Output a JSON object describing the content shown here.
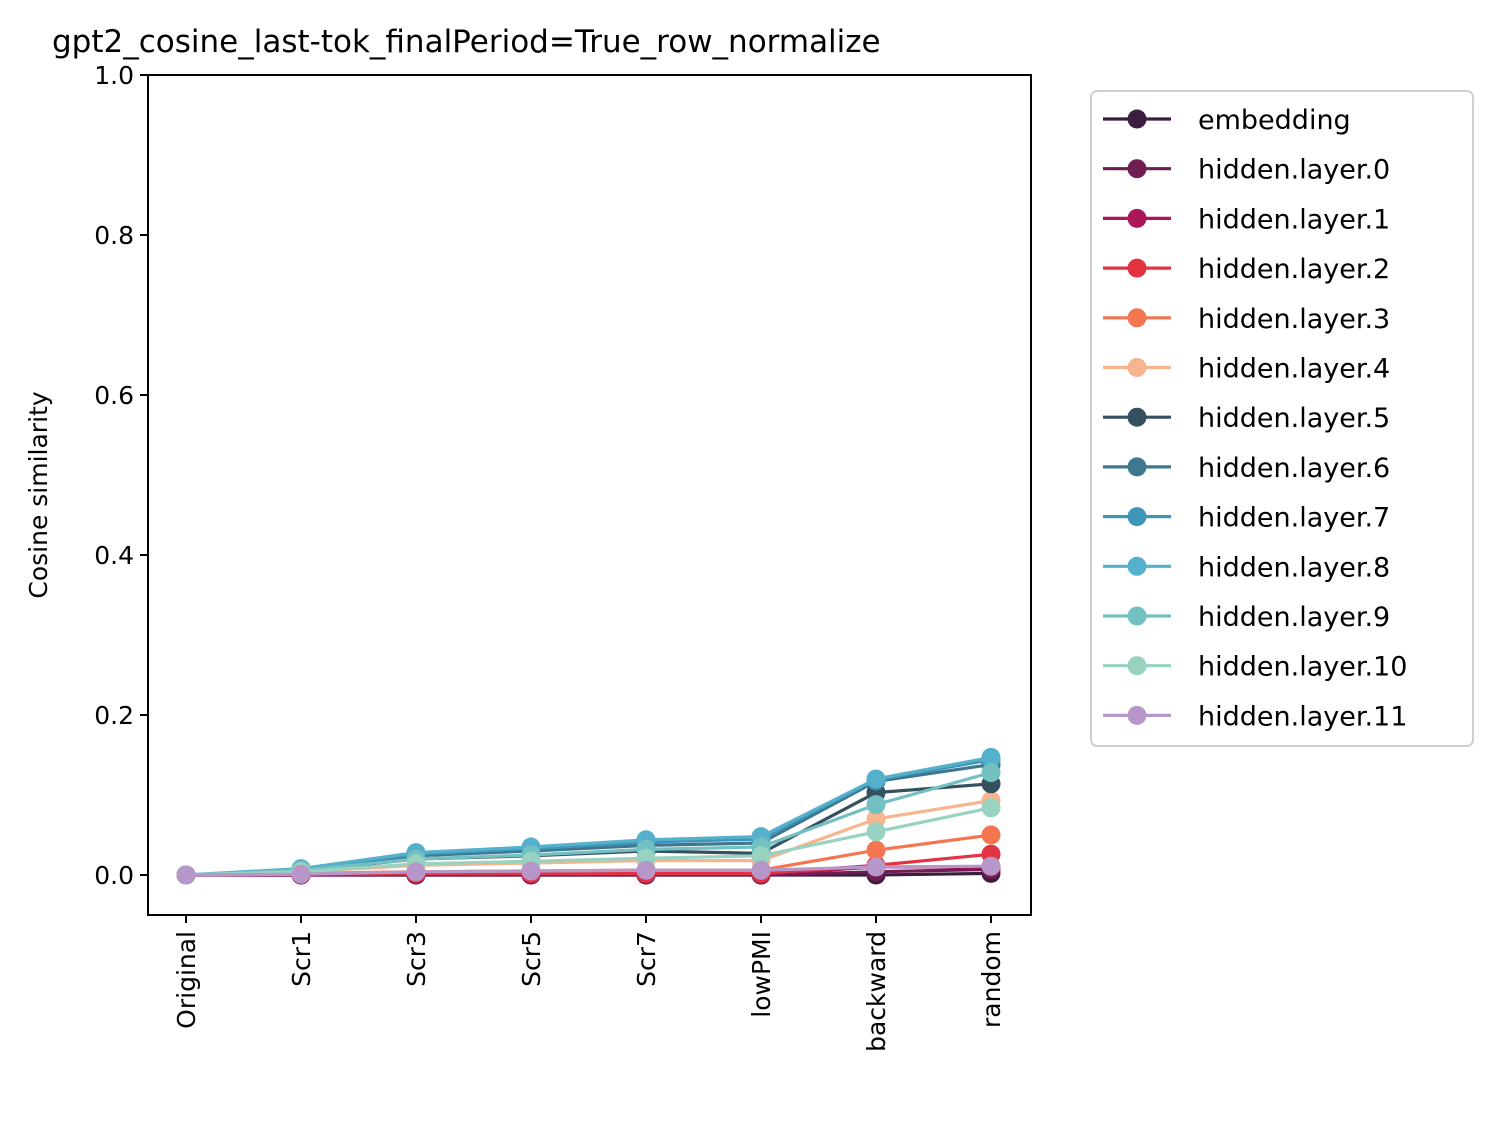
{
  "chart_data": {
    "type": "line",
    "title": "gpt2_cosine_last-tok_finalPeriod=True_row_normalize",
    "xlabel": "",
    "ylabel": "Cosine similarity",
    "categories": [
      "Original",
      "Scr1",
      "Scr3",
      "Scr5",
      "Scr7",
      "lowPMI",
      "backward",
      "random"
    ],
    "ylim": [
      -0.05,
      1.0
    ],
    "yticks": [
      "0.0",
      "0.2",
      "0.4",
      "0.6",
      "0.8",
      "1.0"
    ],
    "ytick_values": [
      0.0,
      0.2,
      0.4,
      0.6,
      0.8,
      1.0
    ],
    "grid": false,
    "legend_position": "outside-right",
    "markers": true,
    "series": [
      {
        "name": "embedding",
        "color": "#3b1d3f",
        "values": [
          0.0,
          0.0,
          0.0,
          0.0,
          0.0,
          0.0,
          0.0,
          0.002
        ]
      },
      {
        "name": "hidden.layer.0",
        "color": "#701d54",
        "values": [
          0.0,
          0.0,
          0.0,
          0.0,
          0.0,
          0.0,
          0.004,
          0.007
        ]
      },
      {
        "name": "hidden.layer.1",
        "color": "#ac1759",
        "values": [
          0.0,
          0.0,
          0.001,
          0.001,
          0.001,
          0.001,
          0.01,
          0.01
        ]
      },
      {
        "name": "hidden.layer.2",
        "color": "#e13342",
        "values": [
          0.0,
          0.001,
          0.002,
          0.002,
          0.002,
          0.002,
          0.012,
          0.026
        ]
      },
      {
        "name": "hidden.layer.3",
        "color": "#f37651",
        "values": [
          0.0,
          0.002,
          0.004,
          0.005,
          0.006,
          0.006,
          0.031,
          0.05
        ]
      },
      {
        "name": "hidden.layer.4",
        "color": "#f6b48f",
        "values": [
          0.0,
          0.004,
          0.012,
          0.015,
          0.018,
          0.018,
          0.07,
          0.093
        ]
      },
      {
        "name": "hidden.layer.5",
        "color": "#35505f",
        "values": [
          0.0,
          0.005,
          0.02,
          0.024,
          0.03,
          0.027,
          0.103,
          0.114
        ]
      },
      {
        "name": "hidden.layer.6",
        "color": "#3f778f",
        "values": [
          0.0,
          0.006,
          0.024,
          0.03,
          0.037,
          0.04,
          0.117,
          0.138
        ]
      },
      {
        "name": "hidden.layer.7",
        "color": "#3f96bb",
        "values": [
          0.0,
          0.007,
          0.026,
          0.033,
          0.041,
          0.045,
          0.119,
          0.144
        ]
      },
      {
        "name": "hidden.layer.8",
        "color": "#55b0cc",
        "values": [
          0.0,
          0.008,
          0.028,
          0.035,
          0.044,
          0.048,
          0.12,
          0.147
        ]
      },
      {
        "name": "hidden.layer.9",
        "color": "#73c0c2",
        "values": [
          0.0,
          0.006,
          0.02,
          0.025,
          0.032,
          0.035,
          0.088,
          0.128
        ]
      },
      {
        "name": "hidden.layer.10",
        "color": "#98d3c1",
        "values": [
          0.0,
          0.004,
          0.014,
          0.017,
          0.021,
          0.024,
          0.054,
          0.084
        ]
      },
      {
        "name": "hidden.layer.11",
        "color": "#b797c9",
        "values": [
          0.0,
          0.001,
          0.004,
          0.005,
          0.006,
          0.006,
          0.01,
          0.011
        ]
      }
    ]
  }
}
